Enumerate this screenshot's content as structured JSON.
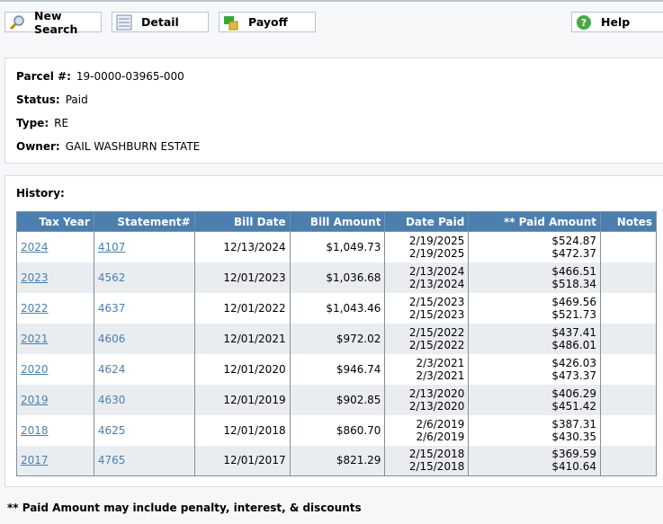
{
  "toolbar": {
    "new_search": "New Search",
    "detail": "Detail",
    "payoff": "Payoff",
    "help": "Help"
  },
  "info": {
    "parcel_label": "Parcel #:",
    "parcel": "19-0000-03965-000",
    "status_label": "Status:",
    "status": "Paid",
    "type_label": "Type:",
    "type": "RE",
    "owner_label": "Owner:",
    "owner": "GAIL WASHBURN ESTATE"
  },
  "history": {
    "title": "History:",
    "columns": [
      "Tax Year",
      "Statement#",
      "Bill Date",
      "Bill Amount",
      "Date Paid",
      "** Paid Amount",
      "Notes"
    ],
    "rows": [
      {
        "year": "2024",
        "statement": "4107",
        "bill_date": "12/13/2024",
        "bill_amount": "$1,049.73",
        "paid1": "2/19/2025",
        "paid2": "2/19/2025",
        "amt1": "$524.87",
        "amt2": "$472.37",
        "notes": ""
      },
      {
        "year": "2023",
        "statement": "4562",
        "bill_date": "12/01/2023",
        "bill_amount": "$1,036.68",
        "paid1": "2/13/2024",
        "paid2": "2/13/2024",
        "amt1": "$466.51",
        "amt2": "$518.34",
        "notes": ""
      },
      {
        "year": "2022",
        "statement": "4637",
        "bill_date": "12/01/2022",
        "bill_amount": "$1,043.46",
        "paid1": "2/15/2023",
        "paid2": "2/15/2023",
        "amt1": "$469.56",
        "amt2": "$521.73",
        "notes": ""
      },
      {
        "year": "2021",
        "statement": "4606",
        "bill_date": "12/01/2021",
        "bill_amount": "$972.02",
        "paid1": "2/15/2022",
        "paid2": "2/15/2022",
        "amt1": "$437.41",
        "amt2": "$486.01",
        "notes": ""
      },
      {
        "year": "2020",
        "statement": "4624",
        "bill_date": "12/01/2020",
        "bill_amount": "$946.74",
        "paid1": "2/3/2021",
        "paid2": "2/3/2021",
        "amt1": "$426.03",
        "amt2": "$473.37",
        "notes": ""
      },
      {
        "year": "2019",
        "statement": "4630",
        "bill_date": "12/01/2019",
        "bill_amount": "$902.85",
        "paid1": "2/13/2020",
        "paid2": "2/13/2020",
        "amt1": "$406.29",
        "amt2": "$451.42",
        "notes": ""
      },
      {
        "year": "2018",
        "statement": "4625",
        "bill_date": "12/01/2018",
        "bill_amount": "$860.70",
        "paid1": "2/6/2019",
        "paid2": "2/6/2019",
        "amt1": "$387.31",
        "amt2": "$430.35",
        "notes": ""
      },
      {
        "year": "2017",
        "statement": "4765",
        "bill_date": "12/01/2017",
        "bill_amount": "$821.29",
        "paid1": "2/15/2018",
        "paid2": "2/15/2018",
        "amt1": "$369.59",
        "amt2": "$410.64",
        "notes": ""
      }
    ]
  },
  "footnote": "** Paid Amount may include penalty, interest, & discounts"
}
